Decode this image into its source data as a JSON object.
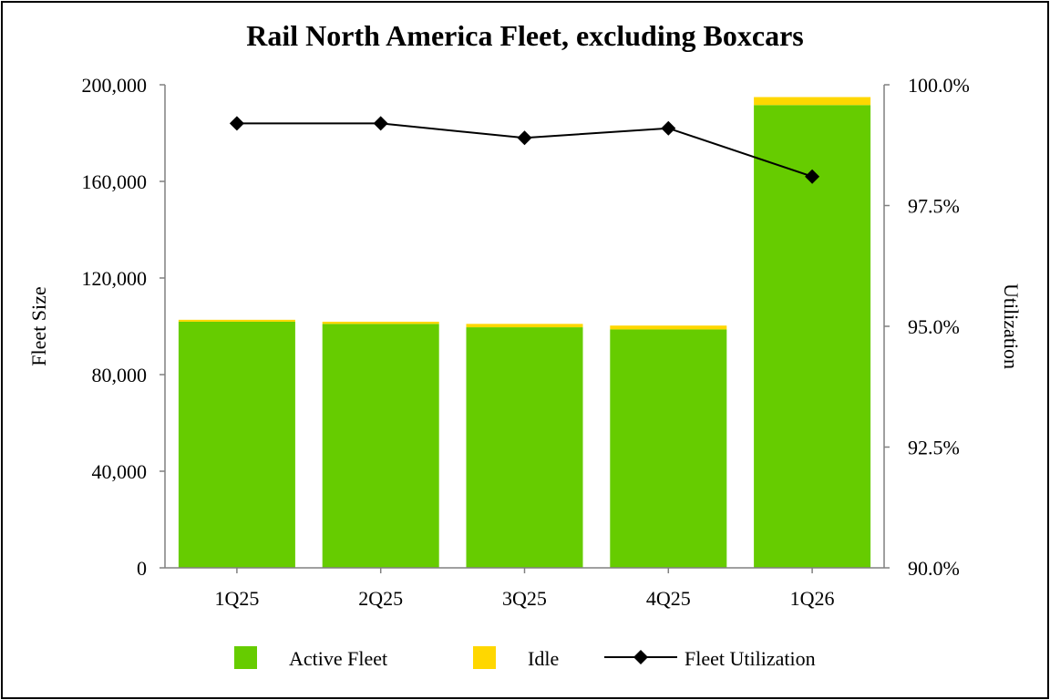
{
  "chart_data": {
    "type": "bar",
    "stacked": true,
    "title": "Rail North America Fleet, excluding Boxcars",
    "ylabel": "Fleet Size",
    "y2label": "Utilization",
    "categories": [
      "1Q25",
      "2Q25",
      "3Q25",
      "4Q25",
      "1Q26"
    ],
    "ylim": [
      0,
      200000
    ],
    "yticks": [
      0,
      40000,
      80000,
      120000,
      160000,
      200000
    ],
    "ytick_labels": [
      "0",
      "40,000",
      "80,000",
      "120,000",
      "160,000",
      "200,000"
    ],
    "y2lim": [
      0.9,
      1.0
    ],
    "y2ticks": [
      0.9,
      0.925,
      0.95,
      0.975,
      1.0
    ],
    "y2tick_labels": [
      "90.0%",
      "92.5%",
      "95.0%",
      "97.5%",
      "100.0%"
    ],
    "series": [
      {
        "name": "Active Fleet",
        "type": "bar",
        "axis": "left",
        "color": "#66CC00",
        "values": [
          101900,
          101000,
          99600,
          98700,
          191600
        ]
      },
      {
        "name": "Idle",
        "type": "bar",
        "axis": "left",
        "color": "#FFD700",
        "values": [
          800,
          900,
          1400,
          1600,
          3300
        ]
      },
      {
        "name": "Fleet Utilization",
        "type": "line",
        "axis": "right",
        "color": "#000000",
        "marker": "diamond",
        "values": [
          0.992,
          0.992,
          0.989,
          0.991,
          0.981
        ]
      }
    ],
    "grid": false,
    "legend_position": "bottom"
  }
}
